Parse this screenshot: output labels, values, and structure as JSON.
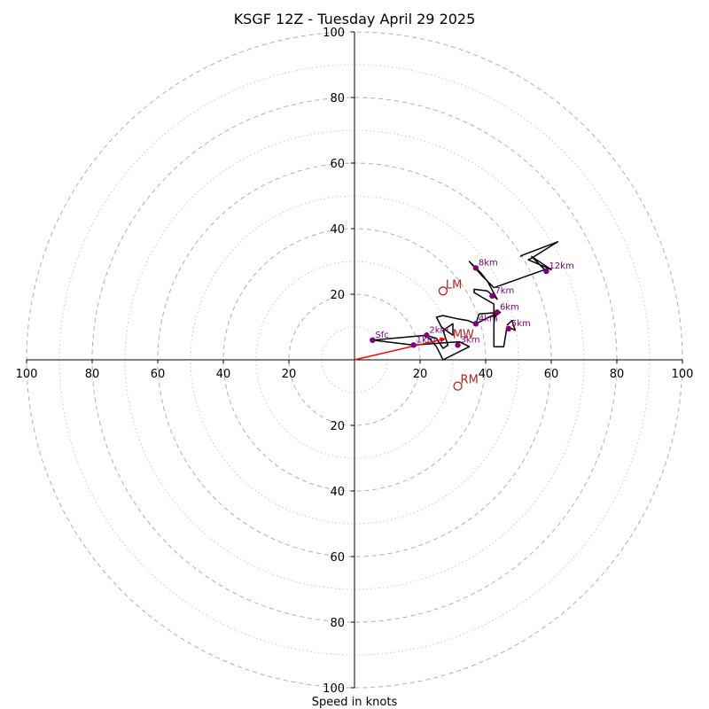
{
  "chart_data": {
    "type": "hodograph",
    "title": "KSGF 12Z - Tuesday April 29 2025",
    "xlabel": "Speed in knots",
    "ylabel": "",
    "units": "knots",
    "range": [
      -100,
      100
    ],
    "rings": {
      "dashed": [
        20,
        40,
        60,
        80,
        100
      ],
      "dotted": [
        10,
        30,
        50,
        70,
        90
      ]
    },
    "ticks": {
      "x": [
        -100,
        -80,
        -60,
        -40,
        -20,
        20,
        40,
        60,
        80,
        100
      ],
      "x_labels": [
        "100",
        "80",
        "60",
        "40",
        "20",
        "20",
        "40",
        "60",
        "80",
        "100"
      ],
      "y": [
        100,
        80,
        60,
        40,
        20,
        -20,
        -40,
        -60,
        -80,
        -100
      ],
      "y_labels": [
        "100",
        "80",
        "60",
        "40",
        "20",
        "20",
        "40",
        "60",
        "80",
        "100"
      ]
    },
    "trace": [
      [
        5.5,
        6.0
      ],
      [
        22,
        7.5
      ],
      [
        25,
        6.5
      ],
      [
        27,
        3.5
      ],
      [
        28.5,
        4.5
      ],
      [
        27,
        9
      ],
      [
        30,
        11
      ],
      [
        30,
        7.5
      ],
      [
        26.5,
        10
      ],
      [
        25,
        13
      ],
      [
        27,
        13.5
      ],
      [
        31.5,
        12.5
      ],
      [
        34.5,
        12
      ],
      [
        37,
        11
      ],
      [
        38,
        14
      ],
      [
        44.5,
        14.5
      ],
      [
        42.5,
        13
      ],
      [
        42.5,
        17
      ],
      [
        36.5,
        20.5
      ],
      [
        36.5,
        21.5
      ],
      [
        40.5,
        21
      ],
      [
        43.5,
        18.5
      ],
      [
        40.5,
        24
      ],
      [
        38.5,
        26.5
      ],
      [
        35,
        30
      ],
      [
        39,
        25.5
      ],
      [
        42.5,
        22
      ],
      [
        58,
        27.5
      ],
      [
        54,
        31.5
      ],
      [
        60,
        27.5
      ],
      [
        53,
        30.5
      ],
      [
        54,
        31
      ],
      [
        62,
        36
      ],
      [
        51.5,
        32
      ],
      [
        50.5,
        31.5
      ]
    ],
    "trace_lower": [
      [
        5.5,
        6.0
      ],
      [
        18,
        4.5
      ],
      [
        32,
        5.5
      ],
      [
        35,
        4
      ],
      [
        27,
        0
      ],
      [
        25,
        4
      ],
      [
        22,
        7.5
      ]
    ],
    "trace_mid": [
      [
        37,
        11
      ],
      [
        43,
        14
      ],
      [
        42.5,
        11
      ],
      [
        42.5,
        4
      ],
      [
        45.5,
        4
      ],
      [
        46.5,
        10
      ],
      [
        47,
        10
      ],
      [
        49,
        9
      ],
      [
        48,
        12
      ],
      [
        46.5,
        10.5
      ]
    ],
    "height_points": [
      {
        "label": "Sfc",
        "u": 5.5,
        "v": 6.0
      },
      {
        "label": "1km",
        "u": 18,
        "v": 4.5
      },
      {
        "label": "2km",
        "u": 22,
        "v": 7.5
      },
      {
        "label": "3km",
        "u": 31.5,
        "v": 4.5
      },
      {
        "label": "4km",
        "u": 37,
        "v": 11
      },
      {
        "label": "5km",
        "u": 47,
        "v": 9.5
      },
      {
        "label": "6km",
        "u": 43.5,
        "v": 14.5
      },
      {
        "label": "7km",
        "u": 42,
        "v": 19.5
      },
      {
        "label": "8km",
        "u": 37,
        "v": 28
      },
      {
        "label": "12km",
        "u": 58.5,
        "v": 27
      }
    ],
    "storm_motion": [
      {
        "label": "LM",
        "u": 27,
        "v": 21
      },
      {
        "label": "RM",
        "u": 31.5,
        "v": -8
      },
      {
        "label": "MW",
        "u": 30.5,
        "v": 8
      }
    ],
    "shear_vector": {
      "from": [
        0,
        0
      ],
      "to": [
        28,
        6.5
      ]
    },
    "colors": {
      "trace": "#000000",
      "points": "#800080",
      "storm_motion": "#b22222",
      "shear_vector": "#ff0000",
      "rings": "#b0b0b0"
    }
  }
}
